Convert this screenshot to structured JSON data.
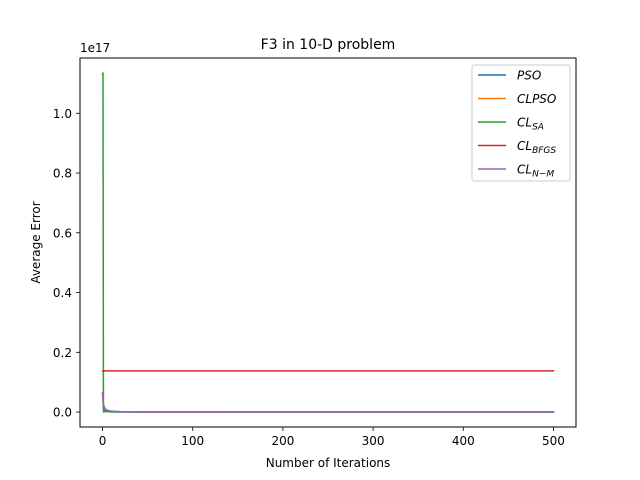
{
  "chart_data": {
    "type": "line",
    "title": "F3 in 10-D problem",
    "xlabel": "Number of Iterations",
    "ylabel": "Average Error",
    "y_offset_label": "1e17",
    "xlim": [
      -25,
      525
    ],
    "ylim": [
      -0.5,
      11.85
    ],
    "y_scale_note": "values in units of 1e17",
    "x_ticks": [
      0,
      100,
      200,
      300,
      400,
      500
    ],
    "y_ticks": [
      0.0,
      0.2,
      0.4,
      0.6,
      0.8,
      1.0
    ],
    "x_tick_labels": [
      "0",
      "100",
      "200",
      "300",
      "400",
      "500"
    ],
    "y_tick_labels": [
      "0.0",
      "0.2",
      "0.4",
      "0.6",
      "0.8",
      "1.0"
    ],
    "legend_position": "top-right",
    "grid": false,
    "series": [
      {
        "name": "PSO",
        "legend": {
          "main": "PSO",
          "sub": ""
        },
        "color": "#1f77b4",
        "points": [
          [
            0,
            0.55
          ],
          [
            1,
            0.12
          ],
          [
            3,
            0.04
          ],
          [
            6,
            0.015
          ],
          [
            10,
            0.006
          ],
          [
            20,
            0.002
          ],
          [
            50,
            0.0005
          ],
          [
            100,
            0.0001
          ],
          [
            500,
            0.0
          ]
        ]
      },
      {
        "name": "CLPSO",
        "legend": {
          "main": "CLPSO",
          "sub": ""
        },
        "color": "#ff7f0e",
        "points": [
          [
            0,
            0.6
          ],
          [
            1,
            0.2
          ],
          [
            3,
            0.09
          ],
          [
            6,
            0.05
          ],
          [
            10,
            0.03
          ],
          [
            20,
            0.012
          ],
          [
            35,
            0.005
          ],
          [
            60,
            0.002
          ],
          [
            100,
            0.0008
          ],
          [
            500,
            0.0
          ]
        ]
      },
      {
        "name": "CL_SA",
        "legend": {
          "main": "CL",
          "sub": "SA"
        },
        "color": "#2ca02c",
        "points": [
          [
            0,
            11.3
          ],
          [
            0.5,
            11.35
          ],
          [
            1,
            0.0
          ],
          [
            3,
            0.02
          ],
          [
            10,
            0.005
          ],
          [
            500,
            0.0
          ]
        ]
      },
      {
        "name": "CL_BFGS",
        "legend": {
          "main": "CL",
          "sub": "BFGS"
        },
        "color": "#d62728",
        "points": [
          [
            0,
            1.38
          ],
          [
            500,
            1.38
          ]
        ]
      },
      {
        "name": "CL_N-M",
        "legend": {
          "main": "CL",
          "sub": "N−M"
        },
        "color": "#9467bd",
        "points": [
          [
            0,
            0.65
          ],
          [
            1,
            0.25
          ],
          [
            3,
            0.1
          ],
          [
            6,
            0.05
          ],
          [
            10,
            0.03
          ],
          [
            20,
            0.01
          ],
          [
            40,
            0.004
          ],
          [
            80,
            0.001
          ],
          [
            500,
            0.0
          ]
        ]
      }
    ]
  }
}
